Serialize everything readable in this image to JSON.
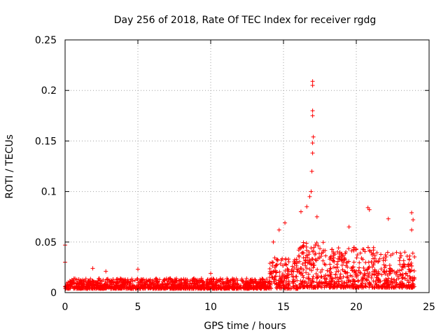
{
  "chart_data": {
    "type": "scatter",
    "title": "Day 256 of 2018, Rate Of TEC Index for receiver rgdg",
    "xlabel": "GPS time / hours",
    "ylabel": "ROTI / TECUs",
    "xlim": [
      0,
      25
    ],
    "ylim": [
      0,
      0.25
    ],
    "xticks": [
      0,
      5,
      10,
      15,
      20,
      25
    ],
    "yticks": [
      0,
      0.05,
      0.1,
      0.15,
      0.2,
      0.25
    ],
    "xtick_labels": [
      "0",
      "5",
      "10",
      "15",
      "20",
      "25"
    ],
    "ytick_labels": [
      "0",
      "0.05",
      "0.1",
      "0.15",
      "0.2",
      "0.25"
    ],
    "grid": true,
    "marker": "+",
    "color": "#ff0000",
    "series": [
      {
        "name": "ROTI",
        "notable_points": [
          {
            "x": 0.0,
            "y": 0.047
          },
          {
            "x": 0.0,
            "y": 0.03
          },
          {
            "x": 1.9,
            "y": 0.024
          },
          {
            "x": 2.8,
            "y": 0.021
          },
          {
            "x": 5.0,
            "y": 0.023
          },
          {
            "x": 10.0,
            "y": 0.019
          },
          {
            "x": 14.3,
            "y": 0.05
          },
          {
            "x": 14.7,
            "y": 0.062
          },
          {
            "x": 15.1,
            "y": 0.069
          },
          {
            "x": 16.2,
            "y": 0.08
          },
          {
            "x": 16.6,
            "y": 0.085
          },
          {
            "x": 16.8,
            "y": 0.095
          },
          {
            "x": 16.9,
            "y": 0.1
          },
          {
            "x": 16.95,
            "y": 0.12
          },
          {
            "x": 17.0,
            "y": 0.138
          },
          {
            "x": 17.0,
            "y": 0.148
          },
          {
            "x": 17.05,
            "y": 0.154
          },
          {
            "x": 17.0,
            "y": 0.175
          },
          {
            "x": 17.0,
            "y": 0.18
          },
          {
            "x": 17.0,
            "y": 0.205
          },
          {
            "x": 17.0,
            "y": 0.209
          },
          {
            "x": 17.3,
            "y": 0.075
          },
          {
            "x": 19.5,
            "y": 0.065
          },
          {
            "x": 20.8,
            "y": 0.084
          },
          {
            "x": 20.9,
            "y": 0.082
          },
          {
            "x": 22.2,
            "y": 0.073
          },
          {
            "x": 23.8,
            "y": 0.079
          },
          {
            "x": 23.9,
            "y": 0.072
          },
          {
            "x": 23.8,
            "y": 0.062
          }
        ],
        "bands": [
          {
            "x_start": 0.0,
            "x_end": 14.0,
            "y_min": 0.004,
            "y_max": 0.014
          },
          {
            "x_start": 14.0,
            "x_end": 16.0,
            "y_min": 0.004,
            "y_max": 0.035
          },
          {
            "x_start": 16.0,
            "x_end": 18.0,
            "y_min": 0.005,
            "y_max": 0.05
          },
          {
            "x_start": 18.0,
            "x_end": 21.5,
            "y_min": 0.005,
            "y_max": 0.045
          },
          {
            "x_start": 21.5,
            "x_end": 24.0,
            "y_min": 0.005,
            "y_max": 0.04
          }
        ]
      }
    ]
  }
}
